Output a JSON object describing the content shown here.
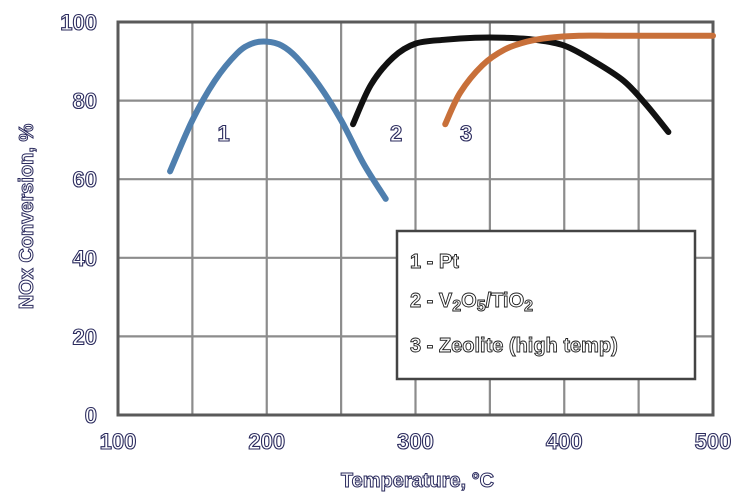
{
  "chart_data": {
    "type": "line",
    "xlabel": "Temperature, °C",
    "ylabel": "NOx Conversion, %",
    "xlim": [
      100,
      500
    ],
    "ylim": [
      0,
      100
    ],
    "x_ticks": [
      "100",
      "200",
      "300",
      "400",
      "500"
    ],
    "y_ticks": [
      "0",
      "20",
      "40",
      "60",
      "80",
      "100"
    ],
    "grid": true,
    "legend_position": "bottom-right",
    "legend": [
      {
        "prefix": "1 - ",
        "text": "Pt"
      },
      {
        "prefix": "2 - ",
        "text": "V",
        "sub1": "2",
        "mid": "O",
        "sub2": "5",
        "suffix": "/TiO",
        "sub3": "2"
      },
      {
        "prefix": "3 - ",
        "text": "Zeolite (high temp)"
      }
    ],
    "series": [
      {
        "label": "1",
        "color": "#4f7fae",
        "x": [
          135,
          150,
          165,
          180,
          190,
          200,
          210,
          220,
          235,
          250,
          265,
          280
        ],
        "y": [
          62,
          75,
          85,
          92,
          94.5,
          95,
          94,
          91,
          84,
          75,
          64,
          55
        ]
      },
      {
        "label": "2",
        "color": "#111111",
        "x": [
          258,
          270,
          285,
          300,
          320,
          340,
          360,
          380,
          400,
          420,
          440,
          455,
          470
        ],
        "y": [
          74,
          84,
          91,
          94.5,
          95.5,
          96,
          96,
          95.5,
          94,
          90,
          85,
          79,
          72
        ]
      },
      {
        "label": "3",
        "color": "#c8703a",
        "x": [
          320,
          330,
          345,
          360,
          375,
          390,
          410,
          430,
          460,
          500
        ],
        "y": [
          74,
          82,
          89,
          93,
          95,
          96,
          96.5,
          96.5,
          96.5,
          96.5
        ]
      }
    ]
  }
}
